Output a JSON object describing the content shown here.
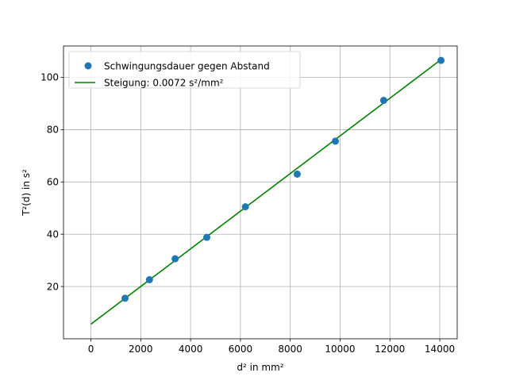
{
  "chart_data": {
    "type": "scatter",
    "title": "",
    "xlabel": "d² in mm²",
    "ylabel": "T²(d) in s²",
    "xlim": [
      -1100,
      14700
    ],
    "ylim": [
      0,
      112
    ],
    "xticks": [
      0,
      2000,
      4000,
      6000,
      8000,
      10000,
      12000,
      14000
    ],
    "xtick_labels": [
      "0",
      "2000",
      "4000",
      "6000",
      "8000",
      "10000",
      "12000",
      "14000"
    ],
    "yticks": [
      20,
      40,
      60,
      80,
      100
    ],
    "ytick_labels": [
      "20",
      "40",
      "60",
      "80",
      "100"
    ],
    "grid": true,
    "legend_position": "top-left",
    "series": [
      {
        "name": "Schwingungsdauer gegen Abstand",
        "kind": "scatter",
        "color": "#1f77b4",
        "x": [
          1370,
          2350,
          3380,
          4650,
          6200,
          8280,
          9810,
          11750,
          14050
        ],
        "y": [
          15.5,
          22.6,
          30.6,
          38.8,
          50.5,
          63.0,
          75.6,
          91.2,
          106.5
        ]
      },
      {
        "name": "Steigung: 0.0072 s²/mm²",
        "kind": "line",
        "color": "#008000",
        "x": [
          0,
          14050
        ],
        "y": [
          5.6,
          106.8
        ]
      }
    ]
  }
}
